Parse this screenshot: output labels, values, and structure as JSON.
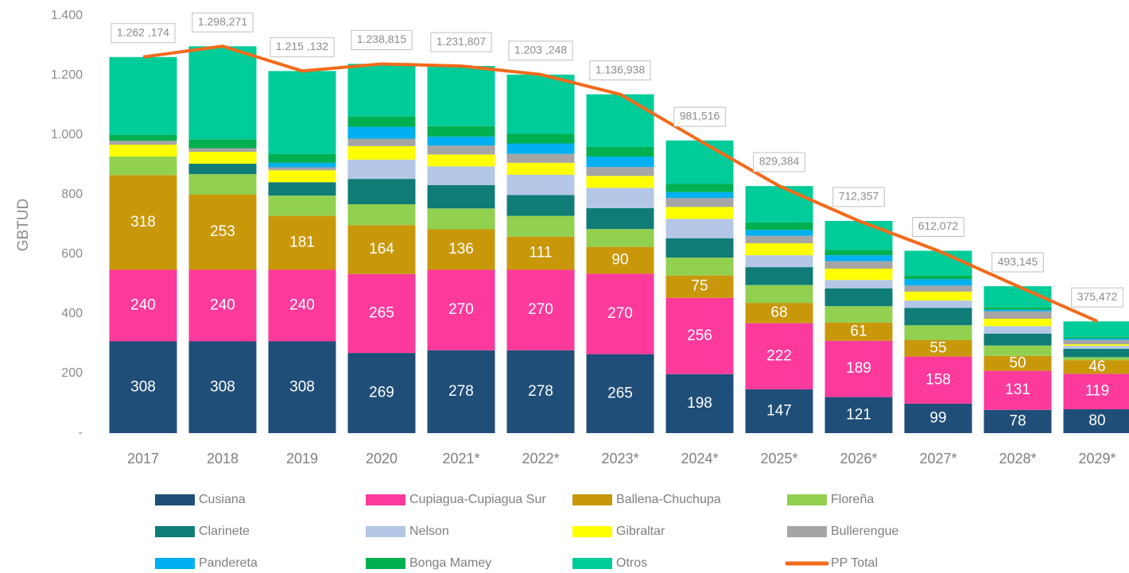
{
  "chart_data": {
    "type": "stacked_bar_line",
    "y_label": "GBTUD",
    "categories": [
      "2017",
      "2018",
      "2019",
      "2020",
      "2021*",
      "2022*",
      "2023*",
      "2024*",
      "2025*",
      "2026*",
      "2027*",
      "2028*",
      "2029*"
    ],
    "ylim": [
      0,
      1400
    ],
    "yticks": [
      {
        "value": 0,
        "label": "-"
      },
      200,
      400,
      600,
      800,
      {
        "value": 1000,
        "label": "1.000"
      },
      {
        "value": 1200,
        "label": "1.200"
      },
      {
        "value": 1400,
        "label": "1.400"
      }
    ],
    "grid": false,
    "series": [
      {
        "name": "Cusiana",
        "color": "#1f4e79",
        "values": [
          308,
          308,
          308,
          269,
          278,
          278,
          265,
          198,
          147,
          121,
          99,
          78,
          80
        ]
      },
      {
        "name": "Cupiagua-Cupiagua Sur",
        "color": "#fb3a9c",
        "values": [
          240,
          240,
          240,
          265,
          270,
          270,
          270,
          256,
          222,
          189,
          158,
          131,
          119
        ]
      },
      {
        "name": "Ballena-Chuchupa",
        "color": "#c9980a",
        "values": [
          318,
          253,
          181,
          164,
          136,
          111,
          90,
          75,
          68,
          61,
          55,
          50,
          46
        ]
      },
      {
        "name": "Floreña",
        "color": "#92d050",
        "values": [
          62,
          68,
          68,
          70,
          70,
          70,
          60,
          60,
          60,
          55,
          50,
          35,
          10
        ]
      },
      {
        "name": "Clarinete",
        "color": "#0f7c76",
        "values": [
          0,
          35,
          45,
          85,
          78,
          70,
          70,
          65,
          60,
          60,
          58,
          40,
          28
        ]
      },
      {
        "name": "Nelson",
        "color": "#b4c7e7",
        "values": [
          0,
          0,
          0,
          65,
          63,
          68,
          68,
          65,
          40,
          28,
          25,
          25,
          10
        ]
      },
      {
        "name": "Gibraltar",
        "color": "#ffff00",
        "values": [
          40,
          40,
          40,
          45,
          40,
          40,
          40,
          40,
          40,
          38,
          30,
          25,
          5
        ]
      },
      {
        "name": "Bullerengue",
        "color": "#a5a5a5",
        "values": [
          13,
          12,
          10,
          25,
          30,
          30,
          30,
          30,
          25,
          25,
          20,
          25,
          15
        ]
      },
      {
        "name": "Pandereta",
        "color": "#00b0f0",
        "values": [
          0,
          0,
          15,
          40,
          30,
          35,
          35,
          20,
          20,
          20,
          22,
          5,
          5
        ]
      },
      {
        "name": "Bonga Mamey",
        "color": "#00b050",
        "values": [
          20,
          30,
          30,
          35,
          35,
          32,
          32,
          28,
          25,
          18,
          12,
          8,
          5
        ]
      },
      {
        "name": "Otros",
        "color": "#00cc99",
        "values": [
          261,
          312,
          278,
          176,
          202,
          199,
          177,
          145,
          122,
          97,
          83,
          71,
          52
        ]
      }
    ],
    "line": {
      "name": "PP Total",
      "color": "#f26a1b",
      "values": [
        1262.174,
        1298.271,
        1215.132,
        1238.815,
        1231.807,
        1203.248,
        1136.938,
        981.516,
        829.384,
        712.357,
        612.072,
        493.145,
        375.472
      ],
      "value_labels": [
        "1.262 ,174",
        "1.298,271",
        "1.215 ,132",
        "1.238,815",
        "1.231,807",
        "1.203 ,248",
        "1.136,938",
        "981,516",
        "829,384",
        "712,357",
        "612,072",
        "493,145",
        "375,472"
      ]
    }
  }
}
